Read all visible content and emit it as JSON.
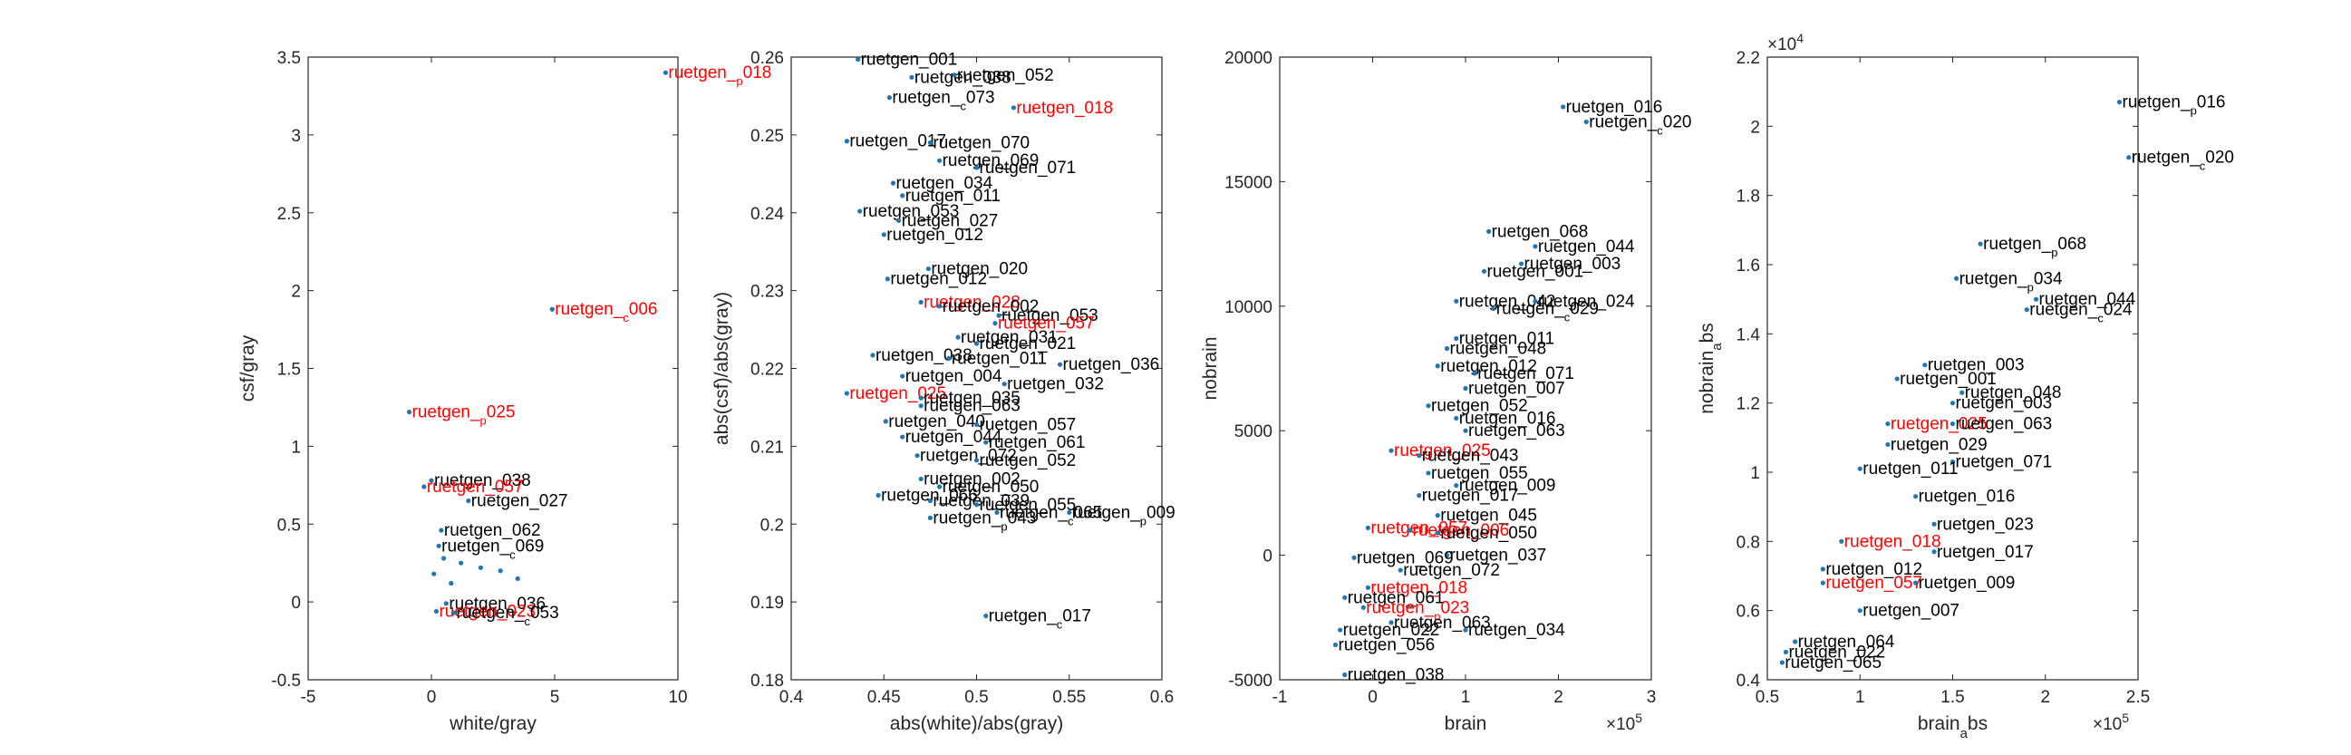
{
  "colors": {
    "normal": "#000000",
    "highlight": "#ff0000",
    "marker": "#1f77b4",
    "axis": "#262626"
  },
  "chart_data": [
    {
      "type": "scatter",
      "xlabel": "white/gray",
      "ylabel": "csf/gray",
      "xlim": [
        -5,
        10
      ],
      "ylim": [
        -0.5,
        3.5
      ],
      "xticks": [
        -5,
        0,
        5,
        10
      ],
      "yticks": [
        -0.5,
        0,
        0.5,
        1,
        1.5,
        2,
        2.5,
        3,
        3.5
      ],
      "xtick_labels": [
        "-5",
        "0",
        "5",
        "10"
      ],
      "ytick_labels": [
        "-0.5",
        "0",
        "0.5",
        "1",
        "1.5",
        "2",
        "2.5",
        "3",
        "3.5"
      ],
      "points": [
        {
          "x": 9.5,
          "y": 3.4,
          "label": "ruetgen_p018",
          "highlight": true
        },
        {
          "x": 4.9,
          "y": 1.88,
          "label": "ruetgen_c006",
          "highlight": true
        },
        {
          "x": -0.9,
          "y": 1.22,
          "label": "ruetgen_p025",
          "highlight": true
        },
        {
          "x": 0.0,
          "y": 0.78,
          "label": "ruetgen_038",
          "highlight": false
        },
        {
          "x": -0.3,
          "y": 0.74,
          "label": "ruetgen_057",
          "highlight": true
        },
        {
          "x": 1.5,
          "y": 0.65,
          "label": "ruetgen_027",
          "highlight": false
        },
        {
          "x": 0.4,
          "y": 0.46,
          "label": "ruetgen_062",
          "highlight": false
        },
        {
          "x": 0.3,
          "y": 0.36,
          "label": "ruetgen_c069",
          "highlight": false
        },
        {
          "x": 0.5,
          "y": 0.28,
          "label": "",
          "highlight": false
        },
        {
          "x": 1.2,
          "y": 0.25,
          "label": "",
          "highlight": false
        },
        {
          "x": 2.0,
          "y": 0.22,
          "label": "",
          "highlight": false
        },
        {
          "x": 2.8,
          "y": 0.2,
          "label": "",
          "highlight": false
        },
        {
          "x": 0.1,
          "y": 0.18,
          "label": "",
          "highlight": false
        },
        {
          "x": 3.5,
          "y": 0.15,
          "label": "",
          "highlight": false
        },
        {
          "x": 0.8,
          "y": 0.12,
          "label": "",
          "highlight": false
        },
        {
          "x": 0.6,
          "y": -0.01,
          "label": "ruetgen_036",
          "highlight": false
        },
        {
          "x": 0.2,
          "y": -0.06,
          "label": "ruetgen_023",
          "highlight": true
        },
        {
          "x": 0.9,
          "y": -0.07,
          "label": "ruetgen_c053",
          "highlight": false
        }
      ]
    },
    {
      "type": "scatter",
      "xlabel": "abs(white)/abs(gray)",
      "ylabel": "abs(csf)/abs(gray)",
      "xlim": [
        0.4,
        0.6
      ],
      "ylim": [
        0.18,
        0.26
      ],
      "xticks": [
        0.4,
        0.45,
        0.5,
        0.55,
        0.6
      ],
      "yticks": [
        0.18,
        0.19,
        0.2,
        0.21,
        0.22,
        0.23,
        0.24,
        0.25,
        0.26
      ],
      "xtick_labels": [
        "0.4",
        "0.45",
        "0.5",
        "0.55",
        "0.6"
      ],
      "ytick_labels": [
        "0.18",
        "0.19",
        "0.2",
        "0.21",
        "0.22",
        "0.23",
        "0.24",
        "0.25",
        "0.26"
      ],
      "points": [
        {
          "x": 0.436,
          "y": 0.2597,
          "label": "ruetgen_001",
          "highlight": false
        },
        {
          "x": 0.465,
          "y": 0.2574,
          "label": "ruetgen_038",
          "highlight": false
        },
        {
          "x": 0.488,
          "y": 0.2577,
          "label": "ruetgen_052",
          "highlight": false
        },
        {
          "x": 0.453,
          "y": 0.2548,
          "label": "ruetgen_c073",
          "highlight": false
        },
        {
          "x": 0.52,
          "y": 0.2535,
          "label": "ruetgen_018",
          "highlight": true
        },
        {
          "x": 0.43,
          "y": 0.2492,
          "label": "ruetgen_017",
          "highlight": false
        },
        {
          "x": 0.475,
          "y": 0.249,
          "label": "ruetgen_070",
          "highlight": false
        },
        {
          "x": 0.48,
          "y": 0.2467,
          "label": "ruetgen_069",
          "highlight": false
        },
        {
          "x": 0.5,
          "y": 0.2458,
          "label": "ruetgen_071",
          "highlight": false
        },
        {
          "x": 0.455,
          "y": 0.2438,
          "label": "ruetgen_034",
          "highlight": false
        },
        {
          "x": 0.46,
          "y": 0.2422,
          "label": "ruetgen_011",
          "highlight": false
        },
        {
          "x": 0.437,
          "y": 0.2402,
          "label": "ruetgen_053",
          "highlight": false
        },
        {
          "x": 0.458,
          "y": 0.239,
          "label": "ruetgen_027",
          "highlight": false
        },
        {
          "x": 0.45,
          "y": 0.2372,
          "label": "ruetgen_012",
          "highlight": false
        },
        {
          "x": 0.474,
          "y": 0.2328,
          "label": "ruetgen_020",
          "highlight": false
        },
        {
          "x": 0.452,
          "y": 0.2315,
          "label": "ruetgen_012",
          "highlight": false
        },
        {
          "x": 0.47,
          "y": 0.2285,
          "label": "ruetgen_028",
          "highlight": true
        },
        {
          "x": 0.48,
          "y": 0.228,
          "label": "ruetgen_002",
          "highlight": false
        },
        {
          "x": 0.512,
          "y": 0.2268,
          "label": "ruetgen_053",
          "highlight": false
        },
        {
          "x": 0.51,
          "y": 0.2258,
          "label": "ruetgen_057",
          "highlight": true
        },
        {
          "x": 0.49,
          "y": 0.224,
          "label": "ruetgen_031",
          "highlight": false
        },
        {
          "x": 0.5,
          "y": 0.2232,
          "label": "ruetgen_021",
          "highlight": false
        },
        {
          "x": 0.444,
          "y": 0.2217,
          "label": "ruetgen_038",
          "highlight": false
        },
        {
          "x": 0.485,
          "y": 0.2213,
          "label": "ruetgen_011",
          "highlight": false
        },
        {
          "x": 0.545,
          "y": 0.2205,
          "label": "ruetgen_036",
          "highlight": false
        },
        {
          "x": 0.46,
          "y": 0.219,
          "label": "ruetgen_004",
          "highlight": false
        },
        {
          "x": 0.515,
          "y": 0.218,
          "label": "ruetgen_032",
          "highlight": false
        },
        {
          "x": 0.43,
          "y": 0.2168,
          "label": "ruetgen_025",
          "highlight": true
        },
        {
          "x": 0.47,
          "y": 0.2162,
          "label": "ruetgen_035",
          "highlight": false
        },
        {
          "x": 0.47,
          "y": 0.2152,
          "label": "ruetgen_063",
          "highlight": false
        },
        {
          "x": 0.451,
          "y": 0.2132,
          "label": "ruetgen_040",
          "highlight": false
        },
        {
          "x": 0.5,
          "y": 0.2128,
          "label": "ruetgen_057",
          "highlight": false
        },
        {
          "x": 0.46,
          "y": 0.2112,
          "label": "ruetgen_044",
          "highlight": false
        },
        {
          "x": 0.505,
          "y": 0.2105,
          "label": "ruetgen_061",
          "highlight": false
        },
        {
          "x": 0.468,
          "y": 0.2088,
          "label": "ruetgen_072",
          "highlight": false
        },
        {
          "x": 0.5,
          "y": 0.2082,
          "label": "ruetgen_052",
          "highlight": false
        },
        {
          "x": 0.47,
          "y": 0.2058,
          "label": "ruetgen_002",
          "highlight": false
        },
        {
          "x": 0.48,
          "y": 0.2048,
          "label": "ruetgen_050",
          "highlight": false
        },
        {
          "x": 0.447,
          "y": 0.2037,
          "label": "ruetgen_066",
          "highlight": false
        },
        {
          "x": 0.475,
          "y": 0.203,
          "label": "ruetgen_039",
          "highlight": false
        },
        {
          "x": 0.5,
          "y": 0.2025,
          "label": "ruetgen_055",
          "highlight": false
        },
        {
          "x": 0.475,
          "y": 0.2008,
          "label": "ruetgen_p043",
          "highlight": false
        },
        {
          "x": 0.511,
          "y": 0.2015,
          "label": "ruetgen_c065",
          "highlight": false
        },
        {
          "x": 0.55,
          "y": 0.2015,
          "label": "ruetgen_p009",
          "highlight": false
        },
        {
          "x": 0.505,
          "y": 0.1882,
          "label": "ruetgen_c017",
          "highlight": false
        }
      ]
    },
    {
      "type": "scatter",
      "xlabel": "brain",
      "ylabel": "nobrain",
      "x_exponent": "×10^5",
      "xlim": [
        -1,
        3
      ],
      "ylim": [
        -5000,
        20000
      ],
      "xticks": [
        -1,
        0,
        1,
        2,
        3
      ],
      "yticks": [
        -5000,
        0,
        5000,
        10000,
        15000,
        20000
      ],
      "xtick_labels": [
        "-1",
        "0",
        "1",
        "2",
        "3"
      ],
      "ytick_labels": [
        "-5000",
        "0",
        "5000",
        "10000",
        "15000",
        "20000"
      ],
      "points": [
        {
          "x": 2.05,
          "y": 18000,
          "label": "ruetgen_016",
          "highlight": false
        },
        {
          "x": 2.3,
          "y": 17400,
          "label": "ruetgen_c020",
          "highlight": false
        },
        {
          "x": 1.25,
          "y": 13000,
          "label": "ruetgen_068",
          "highlight": false
        },
        {
          "x": 1.75,
          "y": 12400,
          "label": "ruetgen_044",
          "highlight": false
        },
        {
          "x": 1.6,
          "y": 11700,
          "label": "ruetgen_003",
          "highlight": false
        },
        {
          "x": 1.2,
          "y": 11400,
          "label": "ruetgen_001",
          "highlight": false
        },
        {
          "x": 0.9,
          "y": 10200,
          "label": "ruetgen_042",
          "highlight": false
        },
        {
          "x": 1.75,
          "y": 10200,
          "label": "ruetgen_024",
          "highlight": false
        },
        {
          "x": 1.3,
          "y": 9900,
          "label": "ruetgen_c029",
          "highlight": false
        },
        {
          "x": 0.9,
          "y": 8700,
          "label": "ruetgen_011",
          "highlight": false
        },
        {
          "x": 0.8,
          "y": 8300,
          "label": "ruetgen_048",
          "highlight": false
        },
        {
          "x": 0.7,
          "y": 7600,
          "label": "ruetgen_012",
          "highlight": false
        },
        {
          "x": 1.1,
          "y": 7300,
          "label": "ruetgen_071",
          "highlight": false
        },
        {
          "x": 1.0,
          "y": 6700,
          "label": "ruetgen_007",
          "highlight": false
        },
        {
          "x": 0.6,
          "y": 6000,
          "label": "ruetgen_052",
          "highlight": false
        },
        {
          "x": 0.9,
          "y": 5500,
          "label": "ruetgen_016",
          "highlight": false
        },
        {
          "x": 1.0,
          "y": 5000,
          "label": "ruetgen_063",
          "highlight": false
        },
        {
          "x": 0.2,
          "y": 4200,
          "label": "ruetgen_025",
          "highlight": true
        },
        {
          "x": 0.5,
          "y": 4000,
          "label": "ruetgen_043",
          "highlight": false
        },
        {
          "x": 0.6,
          "y": 3300,
          "label": "ruetgen_055",
          "highlight": false
        },
        {
          "x": 0.9,
          "y": 2800,
          "label": "ruetgen_009",
          "highlight": false
        },
        {
          "x": 0.5,
          "y": 2400,
          "label": "ruetgen_017",
          "highlight": false
        },
        {
          "x": 0.7,
          "y": 1600,
          "label": "ruetgen_045",
          "highlight": false
        },
        {
          "x": -0.05,
          "y": 1100,
          "label": "ruetgen_057",
          "highlight": true
        },
        {
          "x": 0.4,
          "y": 1000,
          "label": "ruetgen_006",
          "highlight": true
        },
        {
          "x": 0.7,
          "y": 900,
          "label": "ruetgen_050",
          "highlight": false
        },
        {
          "x": 0.8,
          "y": 0,
          "label": "ruetgen_037",
          "highlight": false
        },
        {
          "x": -0.2,
          "y": -100,
          "label": "ruetgen_069",
          "highlight": false
        },
        {
          "x": 0.3,
          "y": -600,
          "label": "ruetgen_072",
          "highlight": false
        },
        {
          "x": -0.05,
          "y": -1300,
          "label": "ruetgen_018",
          "highlight": true
        },
        {
          "x": -0.3,
          "y": -1700,
          "label": "ruetgen_061",
          "highlight": false
        },
        {
          "x": -0.1,
          "y": -2100,
          "label": "ruetgen_p023",
          "highlight": true
        },
        {
          "x": 0.2,
          "y": -2700,
          "label": "ruetgen_063",
          "highlight": false
        },
        {
          "x": -0.35,
          "y": -3000,
          "label": "ruetgen_022",
          "highlight": false
        },
        {
          "x": 1.0,
          "y": -3000,
          "label": "ruetgen_034",
          "highlight": false
        },
        {
          "x": -0.4,
          "y": -3600,
          "label": "ruetgen_056",
          "highlight": false
        },
        {
          "x": -0.3,
          "y": -4800,
          "label": "ruetgen_038",
          "highlight": false
        }
      ]
    },
    {
      "type": "scatter",
      "xlabel": "brain_abs",
      "ylabel": "nobrain_bs",
      "ylabel_subscript": "a",
      "x_exponent": "×10^5",
      "y_exponent": "×10^4",
      "xlim": [
        0.5,
        2.5
      ],
      "ylim": [
        0.4,
        2.2
      ],
      "xticks": [
        0.5,
        1,
        1.5,
        2,
        2.5
      ],
      "yticks": [
        0.4,
        0.6,
        0.8,
        1,
        1.2,
        1.4,
        1.6,
        1.8,
        2,
        2.2
      ],
      "xtick_labels": [
        "0.5",
        "1",
        "1.5",
        "2",
        "2.5"
      ],
      "ytick_labels": [
        "0.4",
        "0.6",
        "0.8",
        "1",
        "1.2",
        "1.4",
        "1.6",
        "1.8",
        "2",
        "2.2"
      ],
      "points": [
        {
          "x": 2.4,
          "y": 2.07,
          "label": "ruetgen_p016",
          "highlight": false
        },
        {
          "x": 2.45,
          "y": 1.91,
          "label": "ruetgen_c020",
          "highlight": false
        },
        {
          "x": 1.65,
          "y": 1.66,
          "label": "ruetgen_p068",
          "highlight": false
        },
        {
          "x": 1.52,
          "y": 1.56,
          "label": "ruetgen_p034",
          "highlight": false
        },
        {
          "x": 1.95,
          "y": 1.5,
          "label": "ruetgen_044",
          "highlight": false
        },
        {
          "x": 1.9,
          "y": 1.47,
          "label": "ruetgen_c024",
          "highlight": false
        },
        {
          "x": 1.35,
          "y": 1.31,
          "label": "ruetgen_003",
          "highlight": false
        },
        {
          "x": 1.2,
          "y": 1.27,
          "label": "ruetgen_001",
          "highlight": false
        },
        {
          "x": 1.55,
          "y": 1.23,
          "label": "ruetgen_048",
          "highlight": false
        },
        {
          "x": 1.5,
          "y": 1.2,
          "label": "ruetgen_003",
          "highlight": false
        },
        {
          "x": 1.15,
          "y": 1.14,
          "label": "ruetgen_025",
          "highlight": true
        },
        {
          "x": 1.5,
          "y": 1.14,
          "label": "ruetgen_063",
          "highlight": false
        },
        {
          "x": 1.15,
          "y": 1.08,
          "label": "ruetgen_029",
          "highlight": false
        },
        {
          "x": 1.5,
          "y": 1.03,
          "label": "ruetgen_071",
          "highlight": false
        },
        {
          "x": 1.0,
          "y": 1.01,
          "label": "ruetgen_011",
          "highlight": false
        },
        {
          "x": 1.3,
          "y": 0.93,
          "label": "ruetgen_016",
          "highlight": false
        },
        {
          "x": 1.4,
          "y": 0.85,
          "label": "ruetgen_023",
          "highlight": false
        },
        {
          "x": 0.9,
          "y": 0.8,
          "label": "ruetgen_018",
          "highlight": true
        },
        {
          "x": 1.4,
          "y": 0.77,
          "label": "ruetgen_017",
          "highlight": false
        },
        {
          "x": 0.8,
          "y": 0.72,
          "label": "ruetgen_012",
          "highlight": false
        },
        {
          "x": 0.8,
          "y": 0.68,
          "label": "ruetgen_057",
          "highlight": true
        },
        {
          "x": 1.3,
          "y": 0.68,
          "label": "ruetgen_009",
          "highlight": false
        },
        {
          "x": 1.0,
          "y": 0.6,
          "label": "ruetgen_007",
          "highlight": false
        },
        {
          "x": 0.65,
          "y": 0.51,
          "label": "ruetgen_064",
          "highlight": false
        },
        {
          "x": 0.6,
          "y": 0.48,
          "label": "ruetgen_022",
          "highlight": false
        },
        {
          "x": 0.58,
          "y": 0.45,
          "label": "ruetgen_065",
          "highlight": false
        }
      ]
    }
  ]
}
